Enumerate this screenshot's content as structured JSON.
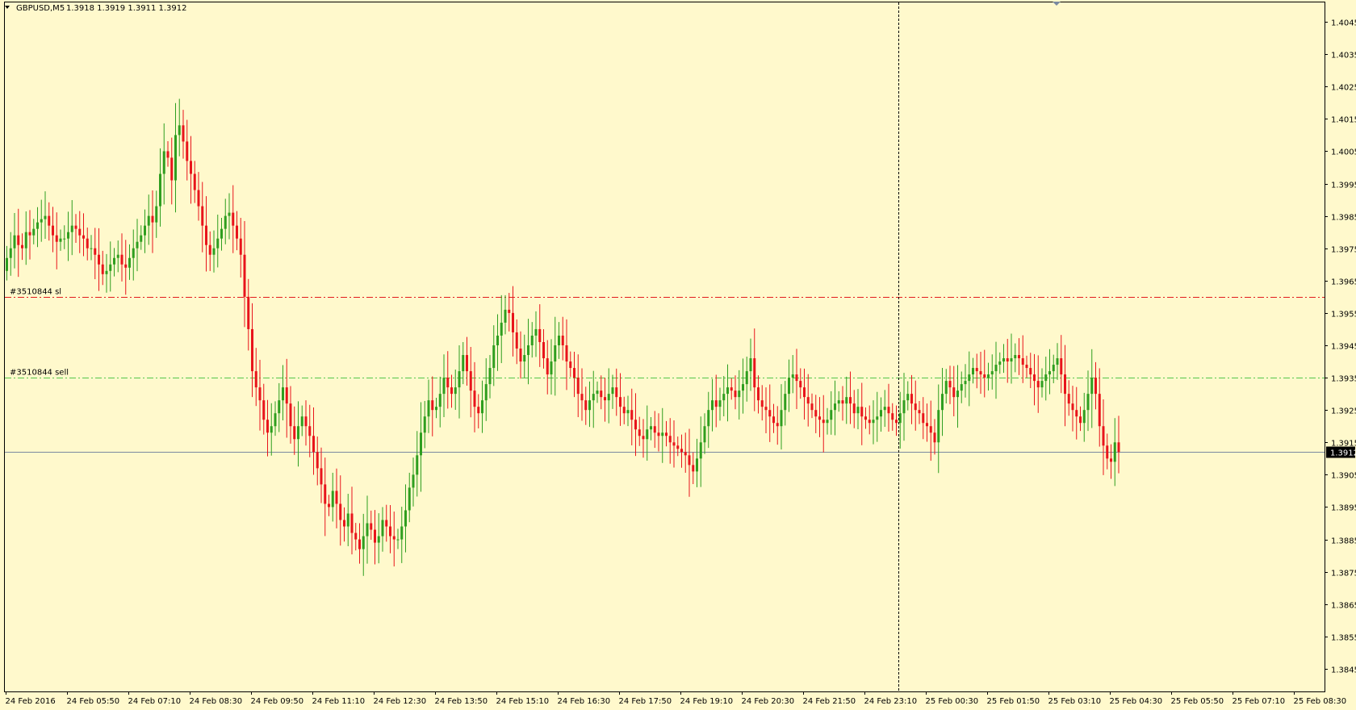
{
  "header": {
    "symbol": "GBPUSD,M5",
    "ohlc": "1.3918 1.3919 1.3911 1.3912",
    "menu_icon": "triangle-down-icon"
  },
  "colors": {
    "background": "#FFF9CC",
    "frame": "#000000",
    "bull": "#2E9E1F",
    "bear": "#E8141B",
    "sl_line": "#E31A1C",
    "entry_line": "#55C64A",
    "bid_line": "#7A8AA0",
    "price_tag_bg": "#000000"
  },
  "chart_data": {
    "type": "candlestick",
    "symbol": "GBPUSD",
    "timeframe": "M5",
    "ylim": [
      1.3838,
      1.4051
    ],
    "y_ticks": [
      "1.4045",
      "1.4035",
      "1.4025",
      "1.4015",
      "1.4005",
      "1.3995",
      "1.3985",
      "1.3975",
      "1.3965",
      "1.3955",
      "1.3945",
      "1.3935",
      "1.3925",
      "1.3915",
      "1.3905",
      "1.3895",
      "1.3885",
      "1.3875",
      "1.3865",
      "1.3855",
      "1.3845"
    ],
    "x_ticks": [
      "24 Feb 2016",
      "24 Feb 05:50",
      "24 Feb 07:10",
      "24 Feb 08:30",
      "24 Feb 09:50",
      "24 Feb 11:10",
      "24 Feb 12:30",
      "24 Feb 13:50",
      "24 Feb 15:10",
      "24 Feb 16:30",
      "24 Feb 17:50",
      "24 Feb 19:10",
      "24 Feb 20:30",
      "24 Feb 21:50",
      "24 Feb 23:10",
      "25 Feb 00:30",
      "25 Feb 01:50",
      "25 Feb 03:10",
      "25 Feb 04:30",
      "25 Feb 05:50",
      "25 Feb 07:10",
      "25 Feb 08:30"
    ],
    "bars_per_x_tick": 16,
    "current_price": "1.3912",
    "crosshair_x_index": 14.55,
    "order_lines": [
      {
        "label": "#3510844 sl",
        "price": 1.396,
        "style": "dash-dot",
        "color": "#E31A1C"
      },
      {
        "label": "#3510844 sell",
        "price": 1.3935,
        "style": "dash-dot",
        "color": "#55C64A"
      }
    ],
    "closes": [
      1.3972,
      1.3975,
      1.3979,
      1.3976,
      1.3975,
      1.398,
      1.3979,
      1.3981,
      1.3983,
      1.3984,
      1.3985,
      1.3982,
      1.3979,
      1.3977,
      1.3978,
      1.3978,
      1.398,
      1.3982,
      1.3981,
      1.3979,
      1.3978,
      1.3975,
      1.3975,
      1.3973,
      1.397,
      1.3967,
      1.3968,
      1.397,
      1.3972,
      1.3973,
      1.397,
      1.3969,
      1.3972,
      1.3975,
      1.3977,
      1.3979,
      1.3982,
      1.3985,
      1.3983,
      1.3988,
      1.3998,
      1.4005,
      1.4003,
      1.3996,
      1.401,
      1.4013,
      1.4008,
      1.4002,
      1.3998,
      1.3993,
      1.3988,
      1.3982,
      1.3976,
      1.3973,
      1.3975,
      1.3978,
      1.3981,
      1.3985,
      1.3986,
      1.3982,
      1.3978,
      1.3973,
      1.396,
      1.395,
      1.3937,
      1.3932,
      1.3928,
      1.3922,
      1.3918,
      1.392,
      1.3924,
      1.3928,
      1.3932,
      1.3927,
      1.392,
      1.3916,
      1.392,
      1.3923,
      1.392,
      1.3917,
      1.3912,
      1.3907,
      1.3902,
      1.3896,
      1.3895,
      1.39,
      1.3896,
      1.3891,
      1.3889,
      1.3893,
      1.3887,
      1.3885,
      1.3882,
      1.3886,
      1.389,
      1.3888,
      1.3884,
      1.3886,
      1.3891,
      1.3889,
      1.3886,
      1.3885,
      1.3885,
      1.3889,
      1.3894,
      1.3901,
      1.3905,
      1.3911,
      1.3918,
      1.3923,
      1.3928,
      1.3925,
      1.3926,
      1.393,
      1.3935,
      1.3932,
      1.393,
      1.3932,
      1.3937,
      1.3942,
      1.3937,
      1.3931,
      1.3926,
      1.3924,
      1.3928,
      1.3933,
      1.3938,
      1.3945,
      1.3948,
      1.3952,
      1.3956,
      1.3955,
      1.3949,
      1.3944,
      1.394,
      1.3942,
      1.3945,
      1.3948,
      1.395,
      1.3946,
      1.3941,
      1.3936,
      1.394,
      1.3945,
      1.3948,
      1.3945,
      1.394,
      1.3938,
      1.3935,
      1.393,
      1.3928,
      1.3925,
      1.3928,
      1.393,
      1.3931,
      1.3929,
      1.3928,
      1.393,
      1.3932,
      1.3929,
      1.3926,
      1.3924,
      1.3925,
      1.3922,
      1.3919,
      1.3917,
      1.3916,
      1.3919,
      1.392,
      1.3918,
      1.3917,
      1.3918,
      1.3917,
      1.3915,
      1.3914,
      1.3913,
      1.3912,
      1.3911,
      1.3908,
      1.3906,
      1.391,
      1.3915,
      1.392,
      1.3925,
      1.3928,
      1.3926,
      1.3928,
      1.393,
      1.3932,
      1.3931,
      1.3929,
      1.3931,
      1.3933,
      1.3937,
      1.3941,
      1.3932,
      1.3928,
      1.3926,
      1.3925,
      1.3923,
      1.3921,
      1.392,
      1.3925,
      1.393,
      1.3935,
      1.3936,
      1.3934,
      1.3932,
      1.3929,
      1.3927,
      1.3925,
      1.3923,
      1.3922,
      1.3921,
      1.3922,
      1.3925,
      1.3927,
      1.3928,
      1.3927,
      1.3929,
      1.3927,
      1.3924,
      1.3926,
      1.3923,
      1.3922,
      1.3921,
      1.3922,
      1.3923,
      1.3925,
      1.3926,
      1.3924,
      1.3922,
      1.3921,
      1.3924,
      1.3928,
      1.393,
      1.3927,
      1.3925,
      1.3924,
      1.3921,
      1.392,
      1.3918,
      1.3915,
      1.3925,
      1.393,
      1.3934,
      1.3932,
      1.3929,
      1.3931,
      1.3933,
      1.3934,
      1.3936,
      1.3938,
      1.3937,
      1.3936,
      1.3935,
      1.3936,
      1.3937,
      1.3939,
      1.394,
      1.3941,
      1.394,
      1.3941,
      1.3942,
      1.3941,
      1.3939,
      1.3938,
      1.3936,
      1.3934,
      1.3932,
      1.3934,
      1.3936,
      1.3937,
      1.3939,
      1.3941,
      1.3936,
      1.393,
      1.3927,
      1.3925,
      1.3923,
      1.3921,
      1.3925,
      1.393,
      1.3935,
      1.393,
      1.392,
      1.3914,
      1.391,
      1.3909,
      1.3915,
      1.3912
    ]
  }
}
